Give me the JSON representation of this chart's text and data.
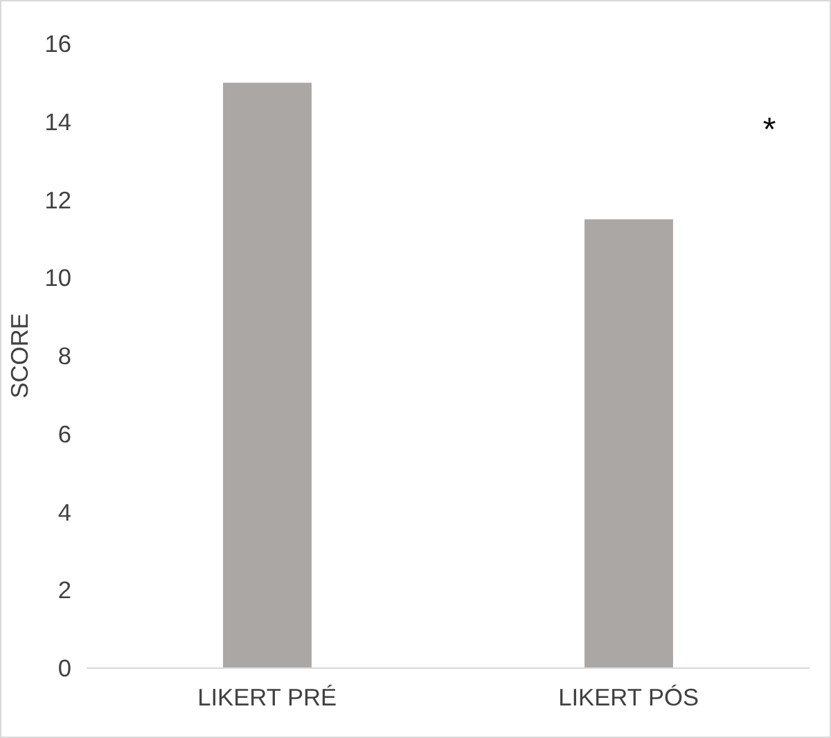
{
  "chart_data": {
    "type": "bar",
    "ylabel": "SCORE",
    "categories": [
      "LIKERT PRÉ",
      "LIKERT PÓS"
    ],
    "values": [
      15,
      11.5
    ],
    "color": "#aba7a5",
    "ylim": [
      0,
      16
    ],
    "yticks": [
      0,
      2,
      4,
      6,
      8,
      10,
      12,
      14,
      16
    ],
    "grid": false,
    "annotations": [
      "*"
    ]
  }
}
